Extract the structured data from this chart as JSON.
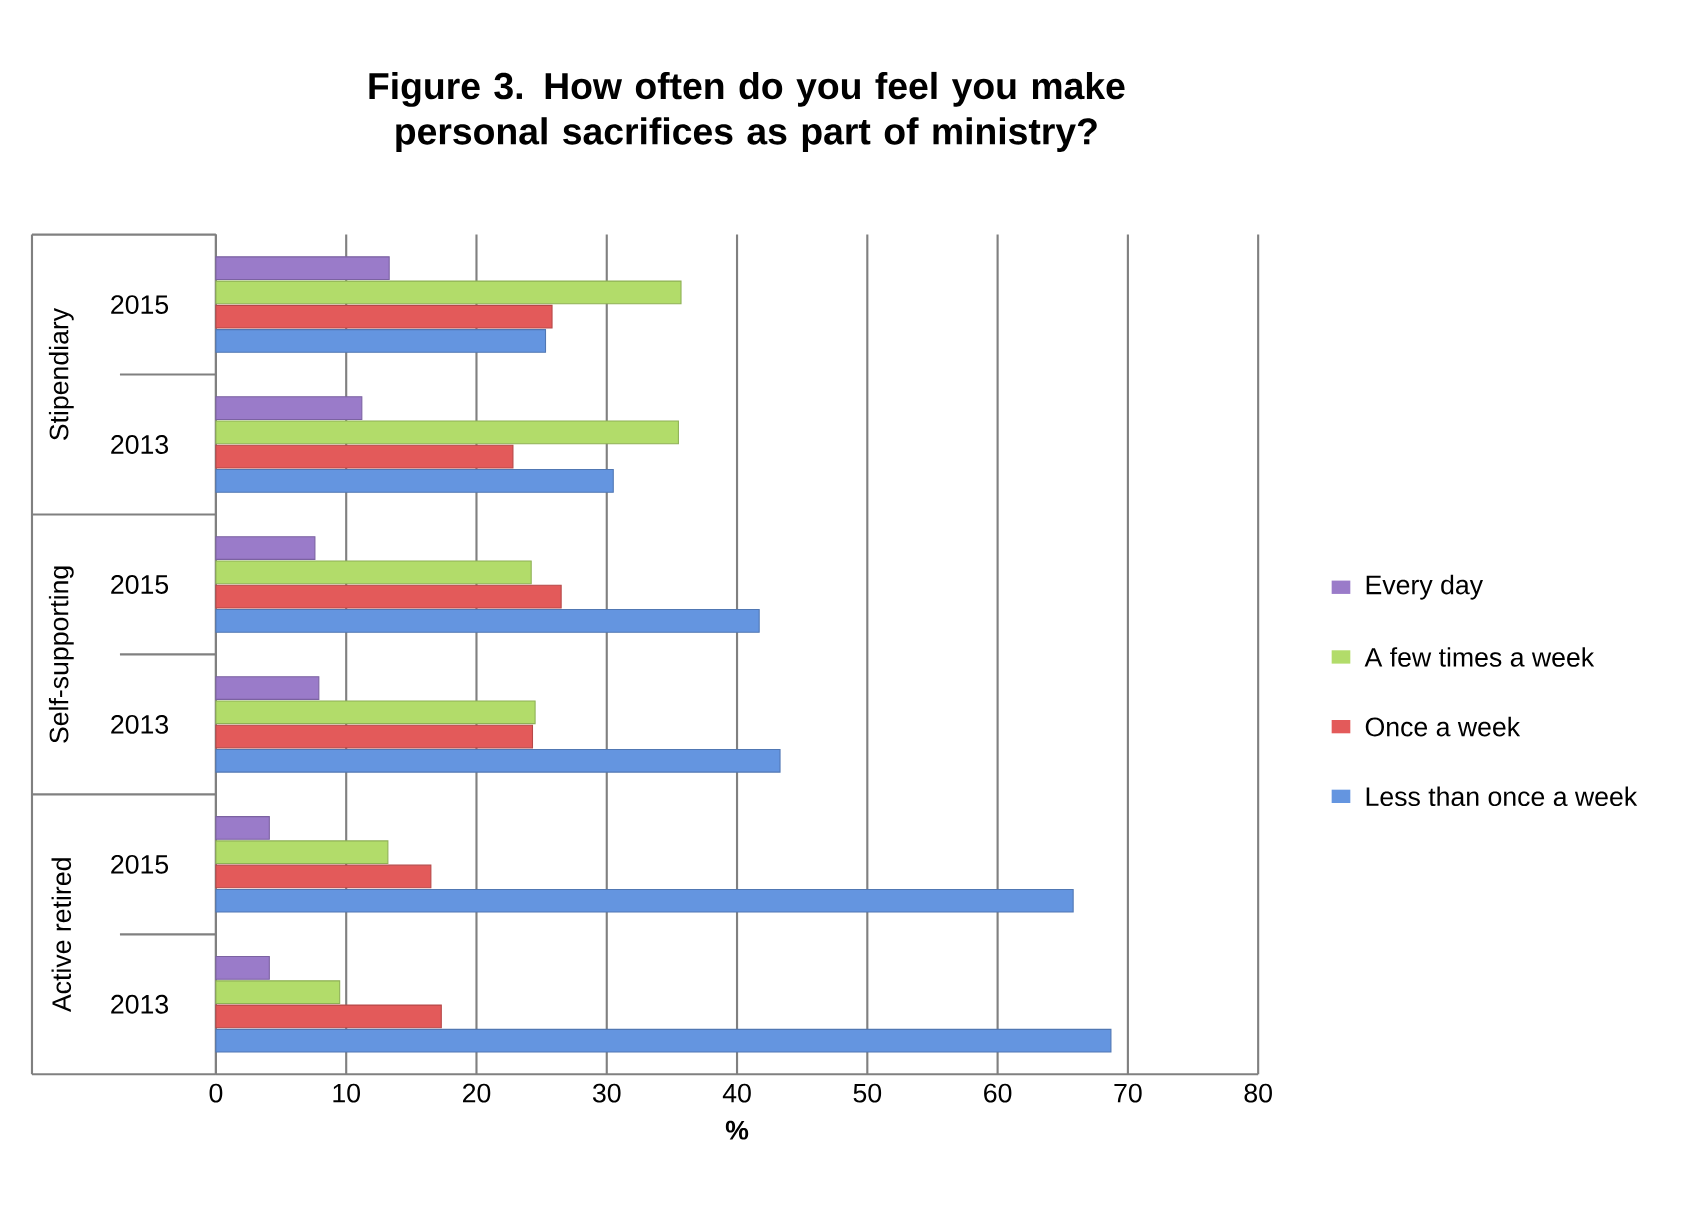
{
  "chart_data": {
    "type": "bar",
    "orientation": "horizontal",
    "title": "Figure 3. How often do you feel you make personal sacrifices as part of ministry?",
    "xlabel": "%",
    "categories": [
      "2015",
      "2013",
      "2015",
      "2013",
      "2015",
      "2013"
    ],
    "series": [
      {
        "name": "Every day",
        "color": "#9a7bc9",
        "values": [
          13.3,
          11.2,
          7.6,
          7.9,
          4.1,
          4.1
        ]
      },
      {
        "name": "A few times a week",
        "color": "#b2dc6a",
        "values": [
          35.7,
          35.5,
          24.2,
          24.5,
          13.2,
          9.5
        ]
      },
      {
        "name": "Once a week",
        "color": "#e35a5a",
        "values": [
          25.8,
          22.8,
          26.5,
          24.3,
          16.5,
          17.3
        ]
      },
      {
        "name": "Less than once a week",
        "color": "#6495e0",
        "values": [
          25.3,
          30.5,
          41.7,
          43.3,
          65.8,
          68.7
        ]
      }
    ],
    "xlim": [
      0,
      80
    ],
    "xticks": [
      0,
      10,
      20,
      30,
      40,
      50,
      60,
      70,
      80
    ],
    "grid": "x",
    "legend": "right",
    "annotations": [
      "Stipendiary",
      "Self-supporting",
      "Active retired"
    ]
  }
}
